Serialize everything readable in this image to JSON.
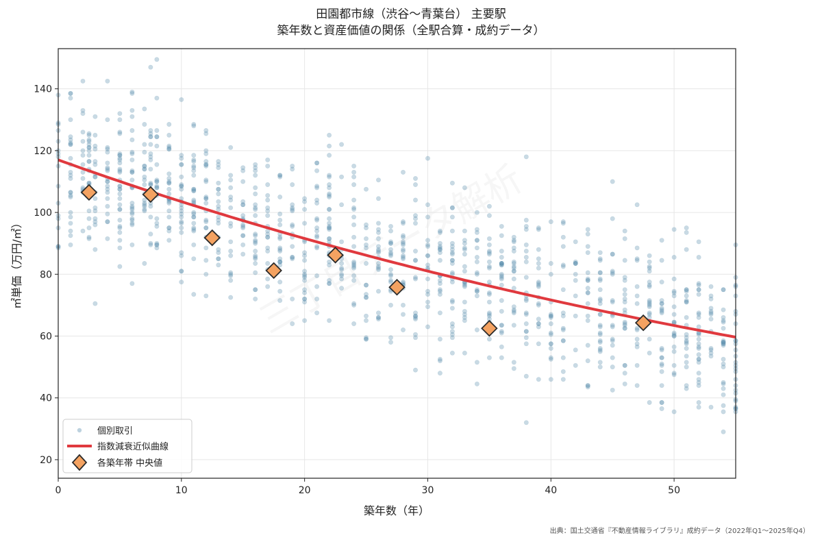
{
  "chart_data": {
    "type": "scatter",
    "title_line1": "田園都市線（渋谷～青葉台） 主要駅",
    "title_line2": "築年数と資産価値の関係（全駅合算・成約データ）",
    "xlabel": "築年数（年）",
    "ylabel": "㎡単価（万円/㎡）",
    "xlim": [
      0,
      55
    ],
    "ylim": [
      14,
      153
    ],
    "xticks": [
      0,
      10,
      20,
      30,
      40,
      50
    ],
    "yticks": [
      20,
      40,
      60,
      80,
      100,
      120,
      140
    ],
    "grid": true,
    "legend_position": "lower-left",
    "legend": [
      "個別取引",
      "指数減衰近似曲線",
      "各築年帯 中央値"
    ],
    "source": "出典：国土交通省『不動産情報ライブラリ』成約データ（2022年Q1～2025年Q4）",
    "watermark": "三丁目データ解析",
    "fit_curve": {
      "model": "exponential_decay",
      "a": 117.0,
      "b": 0.01225
    },
    "medians": [
      {
        "x": 2.5,
        "y": 106.5
      },
      {
        "x": 7.5,
        "y": 105.8
      },
      {
        "x": 12.5,
        "y": 91.8
      },
      {
        "x": 17.5,
        "y": 81.2
      },
      {
        "x": 22.5,
        "y": 86.2
      },
      {
        "x": 27.5,
        "y": 75.8
      },
      {
        "x": 35.0,
        "y": 62.5
      },
      {
        "x": 47.5,
        "y": 64.3
      }
    ],
    "scatter": {
      "x_values": [
        0,
        1,
        2,
        2.5,
        3,
        4,
        5,
        6,
        7,
        7.5,
        8,
        9,
        10,
        11,
        12,
        13,
        14,
        15,
        16,
        17,
        18,
        19,
        20,
        21,
        22,
        23,
        24,
        25,
        26,
        27,
        28,
        29,
        30,
        31,
        32,
        33,
        34,
        35,
        36,
        37,
        38,
        39,
        40,
        41,
        42,
        43,
        44,
        45,
        46,
        47,
        48,
        49,
        50,
        51,
        52,
        53,
        54,
        55
      ],
      "y_min": 20,
      "y_max": 150,
      "point_count": 1200
    },
    "colors": {
      "points": "#5b8fae",
      "curve": "#e0393e",
      "median_fill": "#f4a261",
      "median_edge": "#2b2b2b"
    }
  }
}
